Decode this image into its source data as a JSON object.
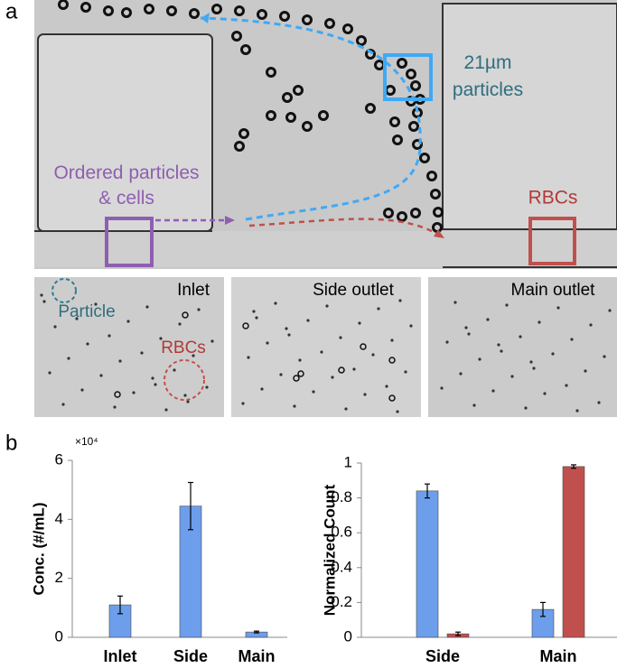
{
  "panel_a": {
    "label": "a",
    "annotations": {
      "particles_21um": [
        "21µm",
        "particles"
      ],
      "ordered": [
        "Ordered particles",
        "& cells"
      ],
      "rbcs_top": "RBCs",
      "inlet": "Inlet",
      "side_outlet": "Side outlet",
      "main_outlet": "Main outlet",
      "particle": "Particle",
      "rbcs_inset": "RBCs"
    }
  },
  "panel_b": {
    "label": "b"
  },
  "chart_data": [
    {
      "type": "bar",
      "ylabel": "Conc. (#/mL)",
      "y_multiplier": "×10⁴",
      "categories": [
        "Inlet",
        "Side",
        "Main"
      ],
      "series": [
        {
          "color": "#6d9eeb",
          "values": [
            1.1,
            4.45,
            0.18
          ],
          "errors": [
            0.3,
            0.8,
            0.03
          ]
        }
      ],
      "ylim": [
        0,
        6
      ],
      "yticks": [
        0,
        2,
        4,
        6
      ]
    },
    {
      "type": "bar",
      "ylabel": "Normalized Count",
      "categories": [
        "Side",
        "Main"
      ],
      "series": [
        {
          "color": "#6d9eeb",
          "values": [
            0.84,
            0.16
          ],
          "errors": [
            0.04,
            0.04
          ]
        },
        {
          "color": "#c0504d",
          "values": [
            0.02,
            0.98
          ],
          "errors": [
            0.01,
            0.01
          ]
        }
      ],
      "ylim": [
        0,
        1
      ],
      "yticks": [
        0,
        0.2,
        0.4,
        0.6,
        0.8,
        1
      ]
    }
  ]
}
